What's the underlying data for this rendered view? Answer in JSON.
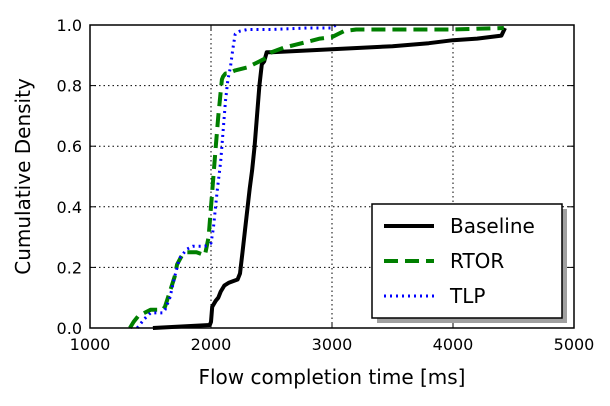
{
  "chart_data": {
    "type": "line",
    "title": "",
    "xlabel": "Flow completion time [ms]",
    "ylabel": "Cumulative Density",
    "xlim": [
      1000,
      5000
    ],
    "ylim": [
      0.0,
      1.0
    ],
    "xticks": [
      1000,
      2000,
      3000,
      4000,
      5000
    ],
    "xtick_labels": [
      "1000",
      "2000",
      "3000",
      "4000",
      "5000"
    ],
    "yticks": [
      0.0,
      0.2,
      0.4,
      0.6,
      0.8,
      1.0
    ],
    "ytick_labels": [
      "0.0",
      "0.2",
      "0.4",
      "0.6",
      "0.8",
      "1.0"
    ],
    "grid": true,
    "legend_position": "bottom-right",
    "series": [
      {
        "name": "Baseline",
        "color": "#000000",
        "style": "solid",
        "x": [
          1520,
          1990,
          2000,
          2010,
          2040,
          2060,
          2080,
          2110,
          2150,
          2220,
          2240,
          2260,
          2280,
          2300,
          2320,
          2340,
          2360,
          2380,
          2400,
          2420,
          2440,
          2460,
          2500,
          3000,
          3500,
          3800,
          4000,
          4200,
          4400,
          4430
        ],
        "y": [
          0.0,
          0.01,
          0.02,
          0.07,
          0.09,
          0.1,
          0.12,
          0.14,
          0.15,
          0.16,
          0.18,
          0.25,
          0.32,
          0.39,
          0.46,
          0.52,
          0.6,
          0.7,
          0.8,
          0.87,
          0.88,
          0.91,
          0.91,
          0.92,
          0.93,
          0.94,
          0.95,
          0.955,
          0.965,
          0.99
        ]
      },
      {
        "name": "RTOR",
        "color": "#007f00",
        "style": "dashed",
        "x": [
          1330,
          1360,
          1400,
          1500,
          1600,
          1620,
          1660,
          1700,
          1720,
          1760,
          1800,
          1880,
          1950,
          1980,
          2000,
          2020,
          2040,
          2060,
          2080,
          2090,
          2100,
          2120,
          2140,
          2200,
          2300,
          2400,
          2450,
          2500,
          2600,
          2700,
          2800,
          2900,
          3000,
          3050,
          3100,
          3200,
          3500,
          4000,
          4420
        ],
        "y": [
          0.0,
          0.02,
          0.04,
          0.06,
          0.06,
          0.07,
          0.12,
          0.17,
          0.21,
          0.24,
          0.25,
          0.25,
          0.24,
          0.3,
          0.4,
          0.5,
          0.6,
          0.7,
          0.78,
          0.82,
          0.83,
          0.84,
          0.84,
          0.85,
          0.86,
          0.88,
          0.89,
          0.91,
          0.925,
          0.935,
          0.945,
          0.955,
          0.96,
          0.97,
          0.98,
          0.985,
          0.985,
          0.985,
          0.99
        ]
      },
      {
        "name": "TLP",
        "color": "#0000ff",
        "style": "dotted",
        "x": [
          1390,
          1450,
          1500,
          1550,
          1600,
          1620,
          1660,
          1700,
          1740,
          1800,
          1850,
          1900,
          1950,
          2000,
          2020,
          2050,
          2080,
          2100,
          2120,
          2140,
          2160,
          2180,
          2200,
          2240,
          2300,
          2500,
          2800,
          3000,
          3030
        ],
        "y": [
          0.0,
          0.03,
          0.05,
          0.05,
          0.05,
          0.06,
          0.1,
          0.17,
          0.23,
          0.26,
          0.27,
          0.27,
          0.27,
          0.28,
          0.33,
          0.45,
          0.55,
          0.65,
          0.75,
          0.82,
          0.86,
          0.92,
          0.97,
          0.98,
          0.985,
          0.985,
          0.99,
          0.99,
          1.0
        ]
      }
    ]
  }
}
